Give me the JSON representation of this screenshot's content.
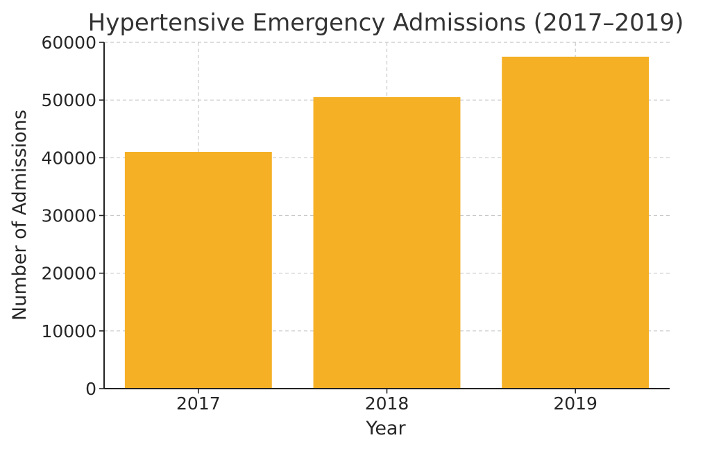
{
  "chart_data": {
    "type": "bar",
    "title": "Hypertensive Emergency Admissions (2017–2019)",
    "xlabel": "Year",
    "ylabel": "Number of Admissions",
    "categories": [
      "2017",
      "2018",
      "2019"
    ],
    "values": [
      41000,
      50500,
      57500
    ],
    "ylim": [
      0,
      60000
    ],
    "yticks": [
      0,
      10000,
      20000,
      30000,
      40000,
      50000,
      60000
    ],
    "grid": true,
    "bar_color": "#F5B025"
  }
}
